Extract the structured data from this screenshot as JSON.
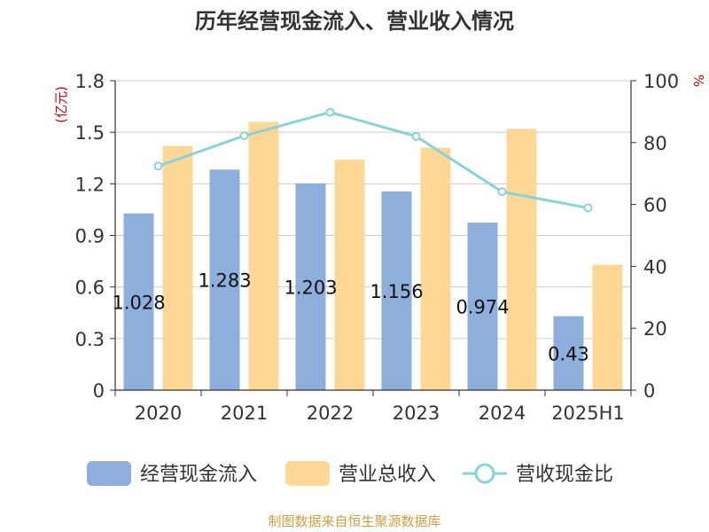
{
  "chart_data": {
    "type": "bar",
    "title": "历年经营现金流入、营业收入情况",
    "categories": [
      "2020",
      "2021",
      "2022",
      "2023",
      "2024",
      "2025H1"
    ],
    "y_left": {
      "label": "(亿元)",
      "range": [
        0,
        1.8
      ],
      "ticks": [
        "0",
        "0.3",
        "0.6",
        "0.9",
        "1.2",
        "1.5",
        "1.8"
      ]
    },
    "y_right": {
      "label": "%",
      "range": [
        0,
        100
      ],
      "ticks": [
        "0",
        "20",
        "40",
        "60",
        "80",
        "100"
      ]
    },
    "series": [
      {
        "name": "经营现金流入",
        "type": "bar",
        "axis": "left",
        "color": "#8eaedb",
        "values": [
          1.028,
          1.283,
          1.203,
          1.156,
          0.974,
          0.43
        ],
        "labels": [
          "1.028",
          "1.283",
          "1.203",
          "1.156",
          "0.974",
          "0.43"
        ]
      },
      {
        "name": "营业总收入",
        "type": "bar",
        "axis": "left",
        "color": "#ffd794",
        "values": [
          1.42,
          1.56,
          1.34,
          1.41,
          1.52,
          0.73
        ]
      },
      {
        "name": "营收现金比",
        "type": "line",
        "axis": "right",
        "color": "#86d3d9",
        "values": [
          72.4,
          82.2,
          89.8,
          82.0,
          64.1,
          58.9
        ]
      }
    ],
    "grid": true,
    "legend_position": "bottom"
  },
  "footer": {
    "source": "制图数据来自恒生聚源数据库"
  },
  "colors": {
    "grid": "#cccccc",
    "axis": "#333333",
    "unit": "#cc0000",
    "source": "#c8a040"
  }
}
